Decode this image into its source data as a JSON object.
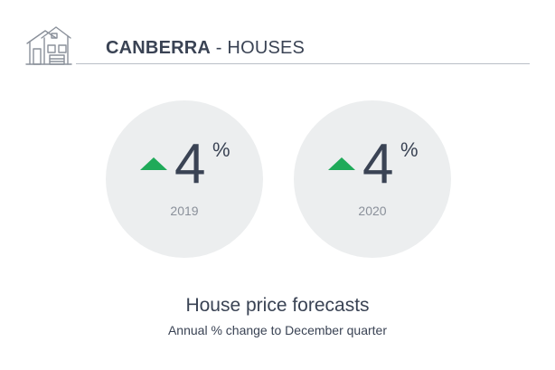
{
  "header": {
    "city": "CANBERRA",
    "separator": " - ",
    "type": "HOUSES",
    "icon": "house-icon"
  },
  "forecasts": [
    {
      "year": "2019",
      "value": "4",
      "unit": "%",
      "direction": "up",
      "color": "#1faa59"
    },
    {
      "year": "2020",
      "value": "4",
      "unit": "%",
      "direction": "up",
      "color": "#1faa59"
    }
  ],
  "caption": {
    "title": "House price forecasts",
    "subtitle": "Annual % change to December quarter"
  },
  "colors": {
    "text": "#3a4354",
    "circle": "#eceeef",
    "accent_up": "#1faa59",
    "muted": "#8a909a"
  }
}
